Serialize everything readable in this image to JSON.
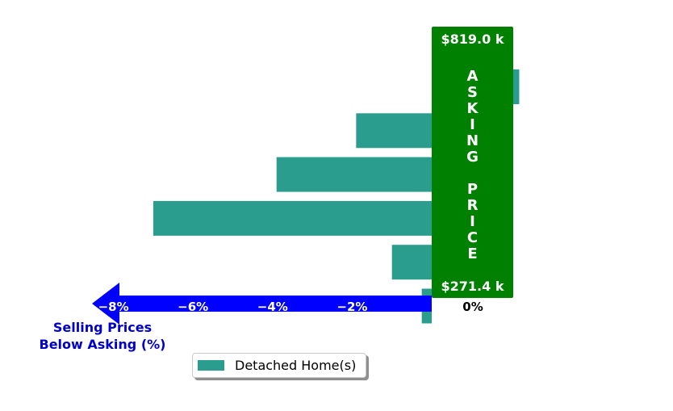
{
  "chart_data": {
    "type": "bar",
    "orientation": "horizontal",
    "series": [
      {
        "name": "Detached Home(s)",
        "color": "#2a9d8f",
        "values": [
          2.2,
          -1.9,
          -3.9,
          -7.0,
          -1.0,
          -0.25
        ]
      }
    ],
    "xlabel": "Selling Prices\nBelow Asking (%)",
    "xlabel_line1": "Selling Prices",
    "xlabel_line2": "Below Asking (%)",
    "x_ticks": [
      "−8%",
      "−6%",
      "−4%",
      "−2%"
    ],
    "x_tick_values": [
      -8,
      -6,
      -4,
      -2
    ],
    "zero_label": "0%",
    "price_top": "$819.0 k",
    "price_bottom": "$271.4 k",
    "asking_letters": [
      "A",
      "S",
      "K",
      "I",
      "N",
      "G",
      "",
      "P",
      "R",
      "I",
      "C",
      "E"
    ],
    "legend_position": "lower-center",
    "colors": {
      "bar": "#2a9d8f",
      "asking_box": "#008000",
      "arrow": "#0000ff",
      "axis_label": "#0000cc"
    }
  }
}
